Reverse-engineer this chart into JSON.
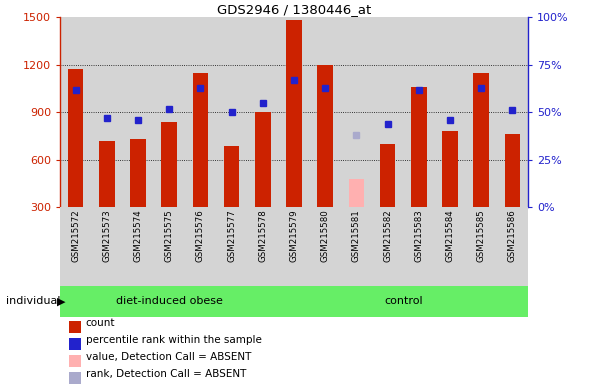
{
  "title": "GDS2946 / 1380446_at",
  "samples": [
    "GSM215572",
    "GSM215573",
    "GSM215574",
    "GSM215575",
    "GSM215576",
    "GSM215577",
    "GSM215578",
    "GSM215579",
    "GSM215580",
    "GSM215581",
    "GSM215582",
    "GSM215583",
    "GSM215584",
    "GSM215585",
    "GSM215586"
  ],
  "counts": [
    1175,
    720,
    730,
    840,
    1150,
    690,
    900,
    1480,
    1200,
    null,
    700,
    1060,
    780,
    1150,
    760
  ],
  "absent_counts": [
    null,
    null,
    null,
    null,
    null,
    null,
    null,
    null,
    null,
    480,
    null,
    null,
    null,
    null,
    null
  ],
  "ranks_pct": [
    62,
    47,
    46,
    52,
    63,
    50,
    55,
    67,
    63,
    null,
    44,
    62,
    46,
    63,
    51
  ],
  "absent_ranks_pct": [
    null,
    null,
    null,
    null,
    null,
    null,
    null,
    null,
    null,
    38,
    null,
    null,
    null,
    null,
    null
  ],
  "group_boundary": 7,
  "group1_label": "diet-induced obese",
  "group2_label": "control",
  "ylim_left": [
    300,
    1500
  ],
  "yticks_left": [
    300,
    600,
    900,
    1200,
    1500
  ],
  "ylim_right": [
    0,
    100
  ],
  "yticks_right": [
    0,
    25,
    50,
    75,
    100
  ],
  "bar_color": "#cc2200",
  "absent_bar_color": "#ffb0b0",
  "rank_color": "#2222cc",
  "absent_rank_color": "#aaaacc",
  "cell_bg_color": "#d4d4d4",
  "group_bg_color": "#66ee66",
  "legend_labels": [
    "count",
    "percentile rank within the sample",
    "value, Detection Call = ABSENT",
    "rank, Detection Call = ABSENT"
  ],
  "legend_colors": [
    "#cc2200",
    "#2222cc",
    "#ffb0b0",
    "#aaaacc"
  ],
  "bar_width": 0.5
}
